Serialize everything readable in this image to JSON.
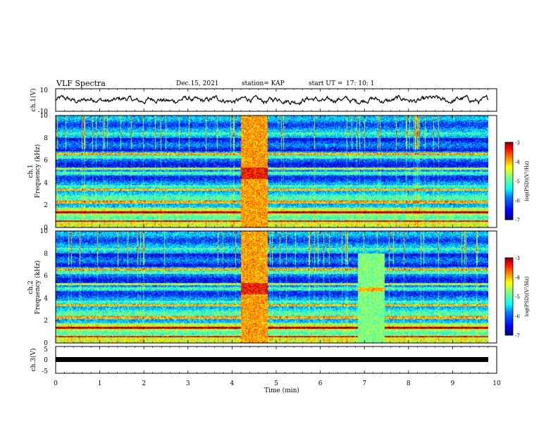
{
  "header": {
    "title": "VLF Spectra",
    "date": "Dec.15, 2021",
    "station": "station= KAP",
    "start_label": "start  UT =",
    "start_time": "17: 10: 1"
  },
  "colormap": [
    "#00007f",
    "#0000ff",
    "#0080ff",
    "#00ffff",
    "#80ff80",
    "#ffff00",
    "#ff8000",
    "#ff0000",
    "#7f0000"
  ],
  "chart_data": [
    {
      "type": "line",
      "name": "ch1-waveform",
      "ylabel": "ch.1(V)",
      "ylim": [
        -10,
        10
      ],
      "yticks": [
        "10",
        "-10"
      ],
      "xlim": [
        0,
        10
      ],
      "description_of_values": "noisy waveform centred near 0 V, amplitude about ±4 V",
      "x_range_data": [
        0,
        9.8
      ],
      "y_range_data": [
        -4,
        4
      ]
    },
    {
      "type": "heatmap",
      "name": "ch1-spectrogram",
      "ylabel": "ch.1 Frequency (kHz)",
      "ylim": [
        0,
        10
      ],
      "yticks": [
        "0",
        "2",
        "4",
        "6",
        "8",
        "10"
      ],
      "xlim": [
        0,
        10
      ],
      "colorbar": {
        "label": "log(PSD)(V²/Hz)",
        "ticks": [
          "-3",
          "-4",
          "-5",
          "-6",
          "-7"
        ],
        "range": [
          -7,
          -3
        ]
      },
      "bursts": [
        {
          "t_start": 4.2,
          "t_end": 4.8,
          "f_max": 10
        }
      ]
    },
    {
      "type": "heatmap",
      "name": "ch2-spectrogram",
      "ylabel": "ch.2 Frequency (kHz)",
      "ylim": [
        0,
        10
      ],
      "yticks": [
        "0",
        "2",
        "4",
        "6",
        "8",
        "10"
      ],
      "xlim": [
        0,
        10
      ],
      "colorbar": {
        "label": "log(PSD)(V²/Hz)",
        "ticks": [
          "-3",
          "-4",
          "-5",
          "-6",
          "-7"
        ],
        "range": [
          -7,
          -3
        ]
      },
      "bursts": [
        {
          "t_start": 4.2,
          "t_end": 4.8,
          "f_max": 10
        },
        {
          "t_start": 6.85,
          "t_end": 7.45,
          "f_max": 8
        }
      ]
    },
    {
      "type": "line",
      "name": "ch3-signal",
      "ylabel": "ch.3(V)",
      "ylim": [
        -5,
        5
      ],
      "yticks": [
        "5",
        "0",
        "-5"
      ],
      "xlim": [
        0,
        10
      ],
      "x_range_data": [
        0,
        9.8
      ],
      "y_range_data": [
        -0.5,
        0.5
      ]
    }
  ],
  "x_axis": {
    "label": "Time  (min)",
    "ticks": [
      "0",
      "1",
      "2",
      "3",
      "4",
      "5",
      "6",
      "7",
      "8",
      "9",
      "10"
    ]
  }
}
